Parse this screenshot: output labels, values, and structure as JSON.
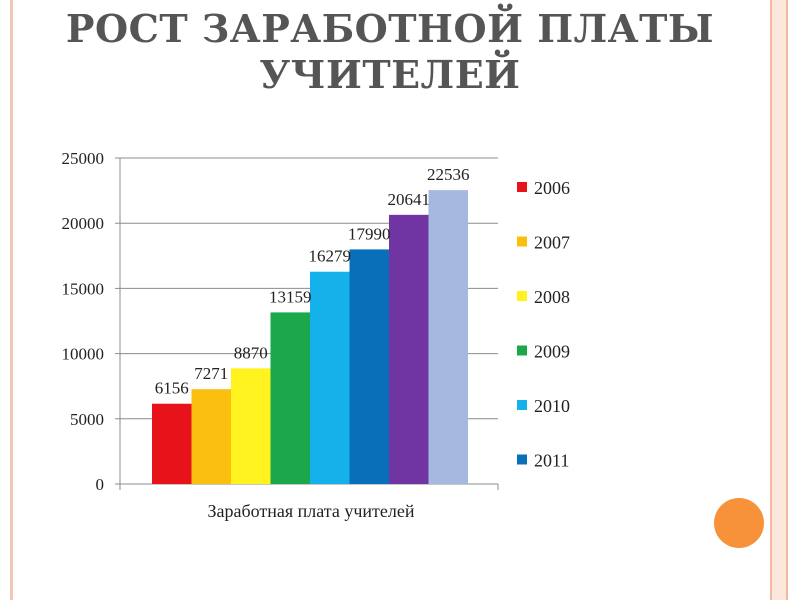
{
  "slide": {
    "title": "РОСТ ЗАРАБОТНОЙ ПЛАТЫ УЧИТЕЛЕЙ",
    "accent_color": "#f7923a"
  },
  "chart_data": {
    "type": "bar",
    "title": "",
    "xlabel": "Заработная плата учителей",
    "ylabel": "",
    "ylim": [
      0,
      25000
    ],
    "yticks": [
      0,
      5000,
      10000,
      15000,
      20000,
      25000
    ],
    "grid": true,
    "legend_position": "right",
    "categories": [
      "Заработная плата учителей"
    ],
    "series": [
      {
        "name": "2006",
        "values": [
          6156
        ],
        "color": "#e8121a"
      },
      {
        "name": "2007",
        "values": [
          7271
        ],
        "color": "#fbbf10"
      },
      {
        "name": "2008",
        "values": [
          8870
        ],
        "color": "#fff21f"
      },
      {
        "name": "2009",
        "values": [
          13159
        ],
        "color": "#1aa84b"
      },
      {
        "name": "2010",
        "values": [
          16279
        ],
        "color": "#14b1ea"
      },
      {
        "name": "2011",
        "values": [
          17990
        ],
        "color": "#0a6fb9"
      },
      {
        "name": "",
        "values": [
          20641
        ],
        "color": "#7035a2"
      },
      {
        "name": "",
        "values": [
          22536
        ],
        "color": "#a5b8de"
      }
    ]
  }
}
